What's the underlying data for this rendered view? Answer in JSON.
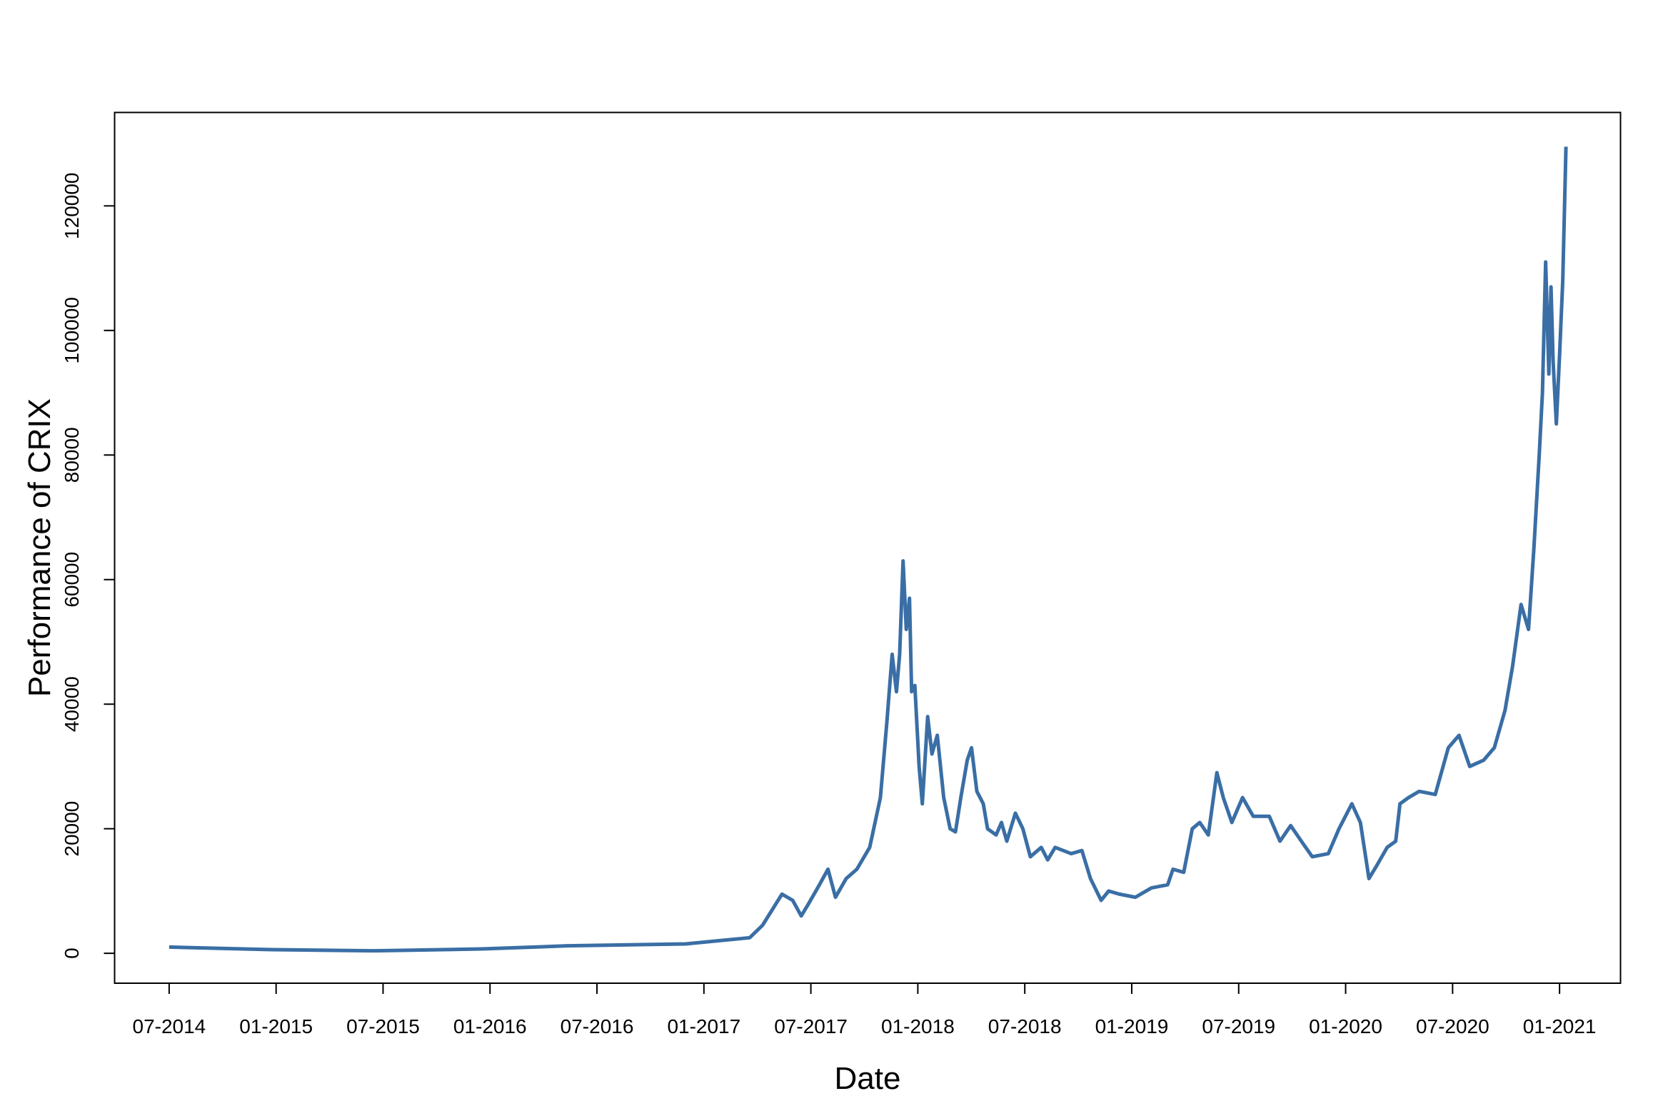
{
  "chart_data": {
    "type": "line",
    "xlabel": "Date",
    "ylabel": "Performance of CRIX",
    "color": "#3a6ea5",
    "x": [
      2014.5,
      2014.961,
      2015.462,
      2015.962,
      2016.363,
      2016.914,
      2017.214,
      2017.274,
      2017.365,
      2017.415,
      2017.455,
      2017.49,
      2017.54,
      2017.58,
      2017.615,
      2017.665,
      2017.715,
      2017.775,
      2017.825,
      2017.855,
      2017.88,
      2017.9,
      2017.915,
      2017.931,
      2017.946,
      2017.961,
      2017.971,
      2017.986,
      2018.006,
      2018.021,
      2018.046,
      2018.066,
      2018.091,
      2018.121,
      2018.151,
      2018.176,
      2018.201,
      2018.231,
      2018.251,
      2018.276,
      2018.306,
      2018.326,
      2018.366,
      2018.391,
      2018.416,
      2018.456,
      2018.491,
      2018.526,
      2018.577,
      2018.607,
      2018.642,
      2018.717,
      2018.767,
      2018.807,
      2018.857,
      2018.892,
      2018.942,
      2019.017,
      2019.092,
      2019.168,
      2019.193,
      2019.243,
      2019.283,
      2019.318,
      2019.358,
      2019.398,
      2019.428,
      2019.468,
      2019.518,
      2019.568,
      2019.643,
      2019.693,
      2019.743,
      2019.793,
      2019.844,
      2019.919,
      2019.969,
      2020.029,
      2020.069,
      2020.109,
      2020.144,
      2020.194,
      2020.234,
      2020.254,
      2020.294,
      2020.344,
      2020.419,
      2020.48,
      2020.53,
      2020.58,
      2020.645,
      2020.695,
      2020.745,
      2020.78,
      2020.82,
      2020.855,
      2020.88,
      2020.905,
      2020.92,
      2020.935,
      2020.95,
      2020.96,
      2020.97,
      2020.985,
      2021.0,
      2021.015,
      2021.03
    ],
    "values": [
      1000,
      600,
      400,
      700,
      1200,
      1500,
      2500,
      4500,
      9500,
      8500,
      6000,
      8000,
      11000,
      13500,
      9000,
      12000,
      13500,
      17000,
      25000,
      37000,
      48000,
      42000,
      48000,
      63000,
      52000,
      57000,
      42000,
      43000,
      30000,
      24000,
      38000,
      32000,
      35000,
      25000,
      20000,
      19500,
      25000,
      31000,
      33000,
      26000,
      24000,
      20000,
      19000,
      21000,
      18000,
      22500,
      20000,
      15500,
      17000,
      15000,
      17000,
      16000,
      16500,
      12000,
      8500,
      10000,
      9500,
      9000,
      10500,
      11000,
      13500,
      13000,
      20000,
      21000,
      19000,
      29000,
      25000,
      21000,
      25000,
      22000,
      22000,
      18000,
      20500,
      18000,
      15500,
      16000,
      20000,
      24000,
      21000,
      12000,
      14000,
      17000,
      18000,
      24000,
      25000,
      26000,
      25500,
      33000,
      35000,
      30000,
      31000,
      33000,
      39000,
      46000,
      56000,
      52000,
      65000,
      80000,
      90000,
      111000,
      93000,
      107000,
      95000,
      85000,
      96000,
      108000,
      129500
    ],
    "xlim": [
      2014.245,
      2021.285
    ],
    "ylim": [
      -4800,
      135000
    ],
    "xticks": [
      {
        "value": 2014.5,
        "label": "07-2014"
      },
      {
        "value": 2015.0,
        "label": "01-2015"
      },
      {
        "value": 2015.5,
        "label": "07-2015"
      },
      {
        "value": 2016.0,
        "label": "01-2016"
      },
      {
        "value": 2016.5,
        "label": "07-2016"
      },
      {
        "value": 2017.0,
        "label": "01-2017"
      },
      {
        "value": 2017.5,
        "label": "07-2017"
      },
      {
        "value": 2018.0,
        "label": "01-2018"
      },
      {
        "value": 2018.5,
        "label": "07-2018"
      },
      {
        "value": 2019.0,
        "label": "01-2019"
      },
      {
        "value": 2019.5,
        "label": "07-2019"
      },
      {
        "value": 2020.0,
        "label": "01-2020"
      },
      {
        "value": 2020.5,
        "label": "07-2020"
      },
      {
        "value": 2021.0,
        "label": "01-2021"
      }
    ],
    "yticks": [
      0,
      20000,
      40000,
      60000,
      80000,
      100000,
      120000
    ]
  }
}
